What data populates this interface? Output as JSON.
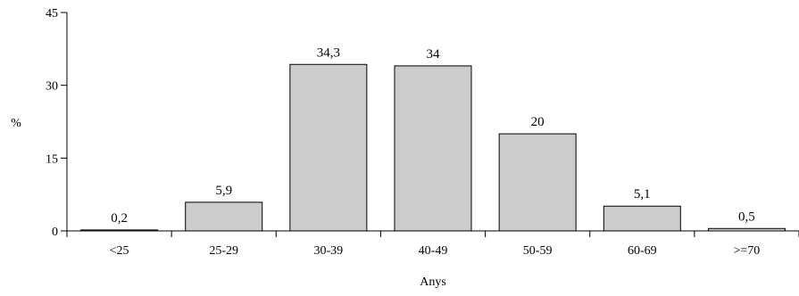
{
  "chart_data": {
    "type": "bar",
    "categories": [
      "<25",
      "25-29",
      "30-39",
      "40-49",
      "50-59",
      "60-69",
      ">=70"
    ],
    "values": [
      0.2,
      5.9,
      34.3,
      34,
      20,
      5.1,
      0.5
    ],
    "value_labels": [
      "0,2",
      "5,9",
      "34,3",
      "34",
      "20",
      "5,1",
      "0,5"
    ],
    "ylabel": "%",
    "xlabel": "Anys",
    "ylim": [
      0,
      45
    ],
    "yticks": [
      0,
      15,
      30,
      45
    ],
    "grid": false,
    "colors": {
      "bar_fill": "#cccccc",
      "bar_stroke": "#000000"
    }
  }
}
